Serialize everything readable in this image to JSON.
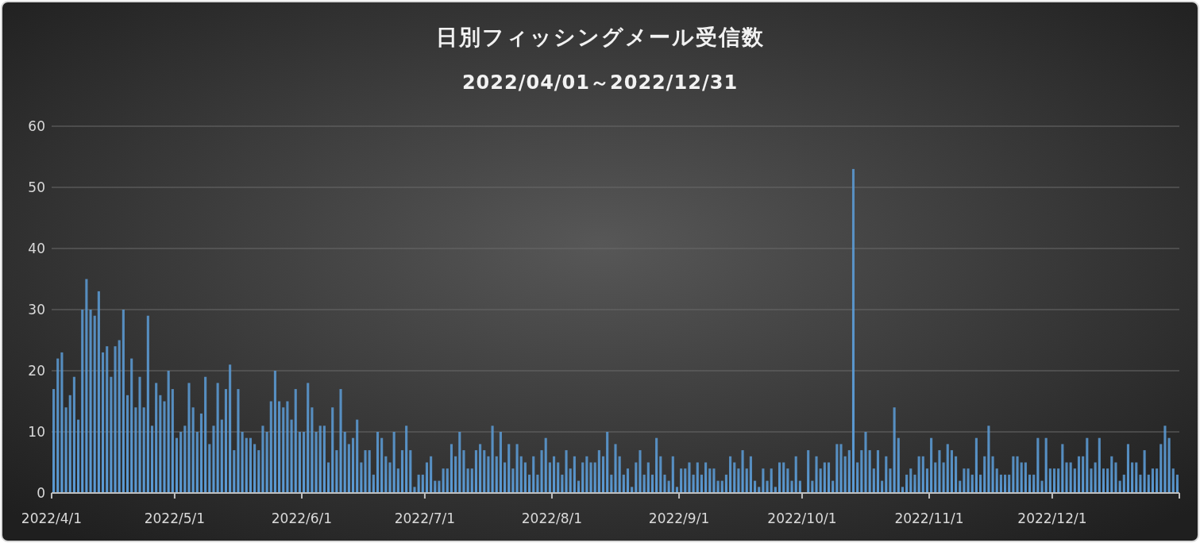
{
  "chart_data": {
    "type": "bar",
    "title": "日別フィッシングメール受信数",
    "subtitle": "2022/04/01～2022/12/31",
    "x": [
      "2022-04-01",
      "2022-04-02",
      "2022-04-03",
      "2022-04-04",
      "2022-04-05",
      "2022-04-06",
      "2022-04-07",
      "2022-04-08",
      "2022-04-09",
      "2022-04-10",
      "2022-04-11",
      "2022-04-12",
      "2022-04-13",
      "2022-04-14",
      "2022-04-15",
      "2022-04-16",
      "2022-04-17",
      "2022-04-18",
      "2022-04-19",
      "2022-04-20",
      "2022-04-21",
      "2022-04-22",
      "2022-04-23",
      "2022-04-24",
      "2022-04-25",
      "2022-04-26",
      "2022-04-27",
      "2022-04-28",
      "2022-04-29",
      "2022-04-30",
      "2022-05-01",
      "2022-05-02",
      "2022-05-03",
      "2022-05-04",
      "2022-05-05",
      "2022-05-06",
      "2022-05-07",
      "2022-05-08",
      "2022-05-09",
      "2022-05-10",
      "2022-05-11",
      "2022-05-12",
      "2022-05-13",
      "2022-05-14",
      "2022-05-15",
      "2022-05-16",
      "2022-05-17",
      "2022-05-18",
      "2022-05-19",
      "2022-05-20",
      "2022-05-21",
      "2022-05-22",
      "2022-05-23",
      "2022-05-24",
      "2022-05-25",
      "2022-05-26",
      "2022-05-27",
      "2022-05-28",
      "2022-05-29",
      "2022-05-30",
      "2022-05-31",
      "2022-06-01",
      "2022-06-02",
      "2022-06-03",
      "2022-06-04",
      "2022-06-05",
      "2022-06-06",
      "2022-06-07",
      "2022-06-08",
      "2022-06-09",
      "2022-06-10",
      "2022-06-11",
      "2022-06-12",
      "2022-06-13",
      "2022-06-14",
      "2022-06-15",
      "2022-06-16",
      "2022-06-17",
      "2022-06-18",
      "2022-06-19",
      "2022-06-20",
      "2022-06-21",
      "2022-06-22",
      "2022-06-23",
      "2022-06-24",
      "2022-06-25",
      "2022-06-26",
      "2022-06-27",
      "2022-06-28",
      "2022-06-29",
      "2022-06-30",
      "2022-07-01",
      "2022-07-02",
      "2022-07-03",
      "2022-07-04",
      "2022-07-05",
      "2022-07-06",
      "2022-07-07",
      "2022-07-08",
      "2022-07-09",
      "2022-07-10",
      "2022-07-11",
      "2022-07-12",
      "2022-07-13",
      "2022-07-14",
      "2022-07-15",
      "2022-07-16",
      "2022-07-17",
      "2022-07-18",
      "2022-07-19",
      "2022-07-20",
      "2022-07-21",
      "2022-07-22",
      "2022-07-23",
      "2022-07-24",
      "2022-07-25",
      "2022-07-26",
      "2022-07-27",
      "2022-07-28",
      "2022-07-29",
      "2022-07-30",
      "2022-07-31",
      "2022-08-01",
      "2022-08-02",
      "2022-08-03",
      "2022-08-04",
      "2022-08-05",
      "2022-08-06",
      "2022-08-07",
      "2022-08-08",
      "2022-08-09",
      "2022-08-10",
      "2022-08-11",
      "2022-08-12",
      "2022-08-13",
      "2022-08-14",
      "2022-08-15",
      "2022-08-16",
      "2022-08-17",
      "2022-08-18",
      "2022-08-19",
      "2022-08-20",
      "2022-08-21",
      "2022-08-22",
      "2022-08-23",
      "2022-08-24",
      "2022-08-25",
      "2022-08-26",
      "2022-08-27",
      "2022-08-28",
      "2022-08-29",
      "2022-08-30",
      "2022-08-31",
      "2022-09-01",
      "2022-09-02",
      "2022-09-03",
      "2022-09-04",
      "2022-09-05",
      "2022-09-06",
      "2022-09-07",
      "2022-09-08",
      "2022-09-09",
      "2022-09-10",
      "2022-09-11",
      "2022-09-12",
      "2022-09-13",
      "2022-09-14",
      "2022-09-15",
      "2022-09-16",
      "2022-09-17",
      "2022-09-18",
      "2022-09-19",
      "2022-09-20",
      "2022-09-21",
      "2022-09-22",
      "2022-09-23",
      "2022-09-24",
      "2022-09-25",
      "2022-09-26",
      "2022-09-27",
      "2022-09-28",
      "2022-09-29",
      "2022-09-30",
      "2022-10-01",
      "2022-10-02",
      "2022-10-03",
      "2022-10-04",
      "2022-10-05",
      "2022-10-06",
      "2022-10-07",
      "2022-10-08",
      "2022-10-09",
      "2022-10-10",
      "2022-10-11",
      "2022-10-12",
      "2022-10-13",
      "2022-10-14",
      "2022-10-15",
      "2022-10-16",
      "2022-10-17",
      "2022-10-18",
      "2022-10-19",
      "2022-10-20",
      "2022-10-21",
      "2022-10-22",
      "2022-10-23",
      "2022-10-24",
      "2022-10-25",
      "2022-10-26",
      "2022-10-27",
      "2022-10-28",
      "2022-10-29",
      "2022-10-30",
      "2022-10-31",
      "2022-11-01",
      "2022-11-02",
      "2022-11-03",
      "2022-11-04",
      "2022-11-05",
      "2022-11-06",
      "2022-11-07",
      "2022-11-08",
      "2022-11-09",
      "2022-11-10",
      "2022-11-11",
      "2022-11-12",
      "2022-11-13",
      "2022-11-14",
      "2022-11-15",
      "2022-11-16",
      "2022-11-17",
      "2022-11-18",
      "2022-11-19",
      "2022-11-20",
      "2022-11-21",
      "2022-11-22",
      "2022-11-23",
      "2022-11-24",
      "2022-11-25",
      "2022-11-26",
      "2022-11-27",
      "2022-11-28",
      "2022-11-29",
      "2022-11-30",
      "2022-12-01",
      "2022-12-02",
      "2022-12-03",
      "2022-12-04",
      "2022-12-05",
      "2022-12-06",
      "2022-12-07",
      "2022-12-08",
      "2022-12-09",
      "2022-12-10",
      "2022-12-11",
      "2022-12-12",
      "2022-12-13",
      "2022-12-14",
      "2022-12-15",
      "2022-12-16",
      "2022-12-17",
      "2022-12-18",
      "2022-12-19",
      "2022-12-20",
      "2022-12-21",
      "2022-12-22",
      "2022-12-23",
      "2022-12-24",
      "2022-12-25",
      "2022-12-26",
      "2022-12-27",
      "2022-12-28",
      "2022-12-29",
      "2022-12-30",
      "2022-12-31"
    ],
    "values": [
      17,
      22,
      23,
      14,
      16,
      19,
      12,
      30,
      35,
      30,
      29,
      33,
      23,
      24,
      19,
      24,
      25,
      30,
      16,
      22,
      14,
      19,
      14,
      29,
      11,
      18,
      16,
      15,
      20,
      17,
      9,
      10,
      11,
      18,
      14,
      10,
      13,
      19,
      8,
      11,
      18,
      12,
      17,
      21,
      7,
      17,
      10,
      9,
      9,
      8,
      7,
      11,
      10,
      15,
      20,
      15,
      14,
      15,
      12,
      17,
      10,
      10,
      18,
      14,
      10,
      11,
      11,
      5,
      14,
      7,
      17,
      10,
      8,
      9,
      12,
      5,
      7,
      7,
      3,
      10,
      9,
      6,
      5,
      10,
      4,
      7,
      11,
      7,
      1,
      3,
      3,
      5,
      6,
      2,
      2,
      4,
      4,
      8,
      6,
      10,
      7,
      4,
      4,
      7,
      8,
      7,
      6,
      11,
      6,
      10,
      5,
      8,
      4,
      8,
      6,
      5,
      3,
      6,
      3,
      7,
      9,
      5,
      6,
      5,
      3,
      7,
      4,
      6,
      2,
      5,
      6,
      5,
      5,
      7,
      6,
      10,
      3,
      8,
      6,
      3,
      4,
      1,
      5,
      7,
      3,
      5,
      3,
      9,
      6,
      3,
      2,
      6,
      1,
      4,
      4,
      5,
      3,
      5,
      3,
      5,
      4,
      4,
      2,
      2,
      3,
      6,
      5,
      4,
      7,
      4,
      6,
      2,
      1,
      4,
      2,
      4,
      1,
      5,
      5,
      4,
      2,
      6,
      2,
      0,
      7,
      2,
      6,
      4,
      5,
      5,
      2,
      8,
      8,
      6,
      7,
      53,
      5,
      7,
      10,
      7,
      4,
      7,
      2,
      6,
      4,
      14,
      9,
      1,
      3,
      4,
      3,
      6,
      6,
      4,
      9,
      5,
      7,
      5,
      8,
      7,
      6,
      2,
      4,
      4,
      3,
      9,
      3,
      6,
      11,
      6,
      4,
      3,
      3,
      3,
      6,
      6,
      5,
      5,
      3,
      3,
      9,
      2,
      9,
      4,
      4,
      4,
      8,
      5,
      5,
      4,
      6,
      6,
      9,
      4,
      5,
      9,
      4,
      4,
      6,
      5,
      2,
      3,
      8,
      5,
      5,
      3,
      7,
      3,
      4,
      4,
      8,
      11,
      9,
      4,
      3
    ],
    "color": "#5b9bd5",
    "xlim": [
      "2022-04-01",
      "2023-01-01"
    ],
    "xticks": [
      {
        "value": "2022-04-01",
        "label": "2022/4/1"
      },
      {
        "value": "2022-05-01",
        "label": "2022/5/1"
      },
      {
        "value": "2022-06-01",
        "label": "2022/6/1"
      },
      {
        "value": "2022-07-01",
        "label": "2022/7/1"
      },
      {
        "value": "2022-08-01",
        "label": "2022/8/1"
      },
      {
        "value": "2022-09-01",
        "label": "2022/9/1"
      },
      {
        "value": "2022-10-01",
        "label": "2022/10/1"
      },
      {
        "value": "2022-11-01",
        "label": "2022/11/1"
      },
      {
        "value": "2022-12-01",
        "label": "2022/12/1"
      }
    ],
    "ylim": [
      0,
      60
    ],
    "yticks": [
      0,
      10,
      20,
      30,
      40,
      50,
      60
    ],
    "grid": "y"
  }
}
